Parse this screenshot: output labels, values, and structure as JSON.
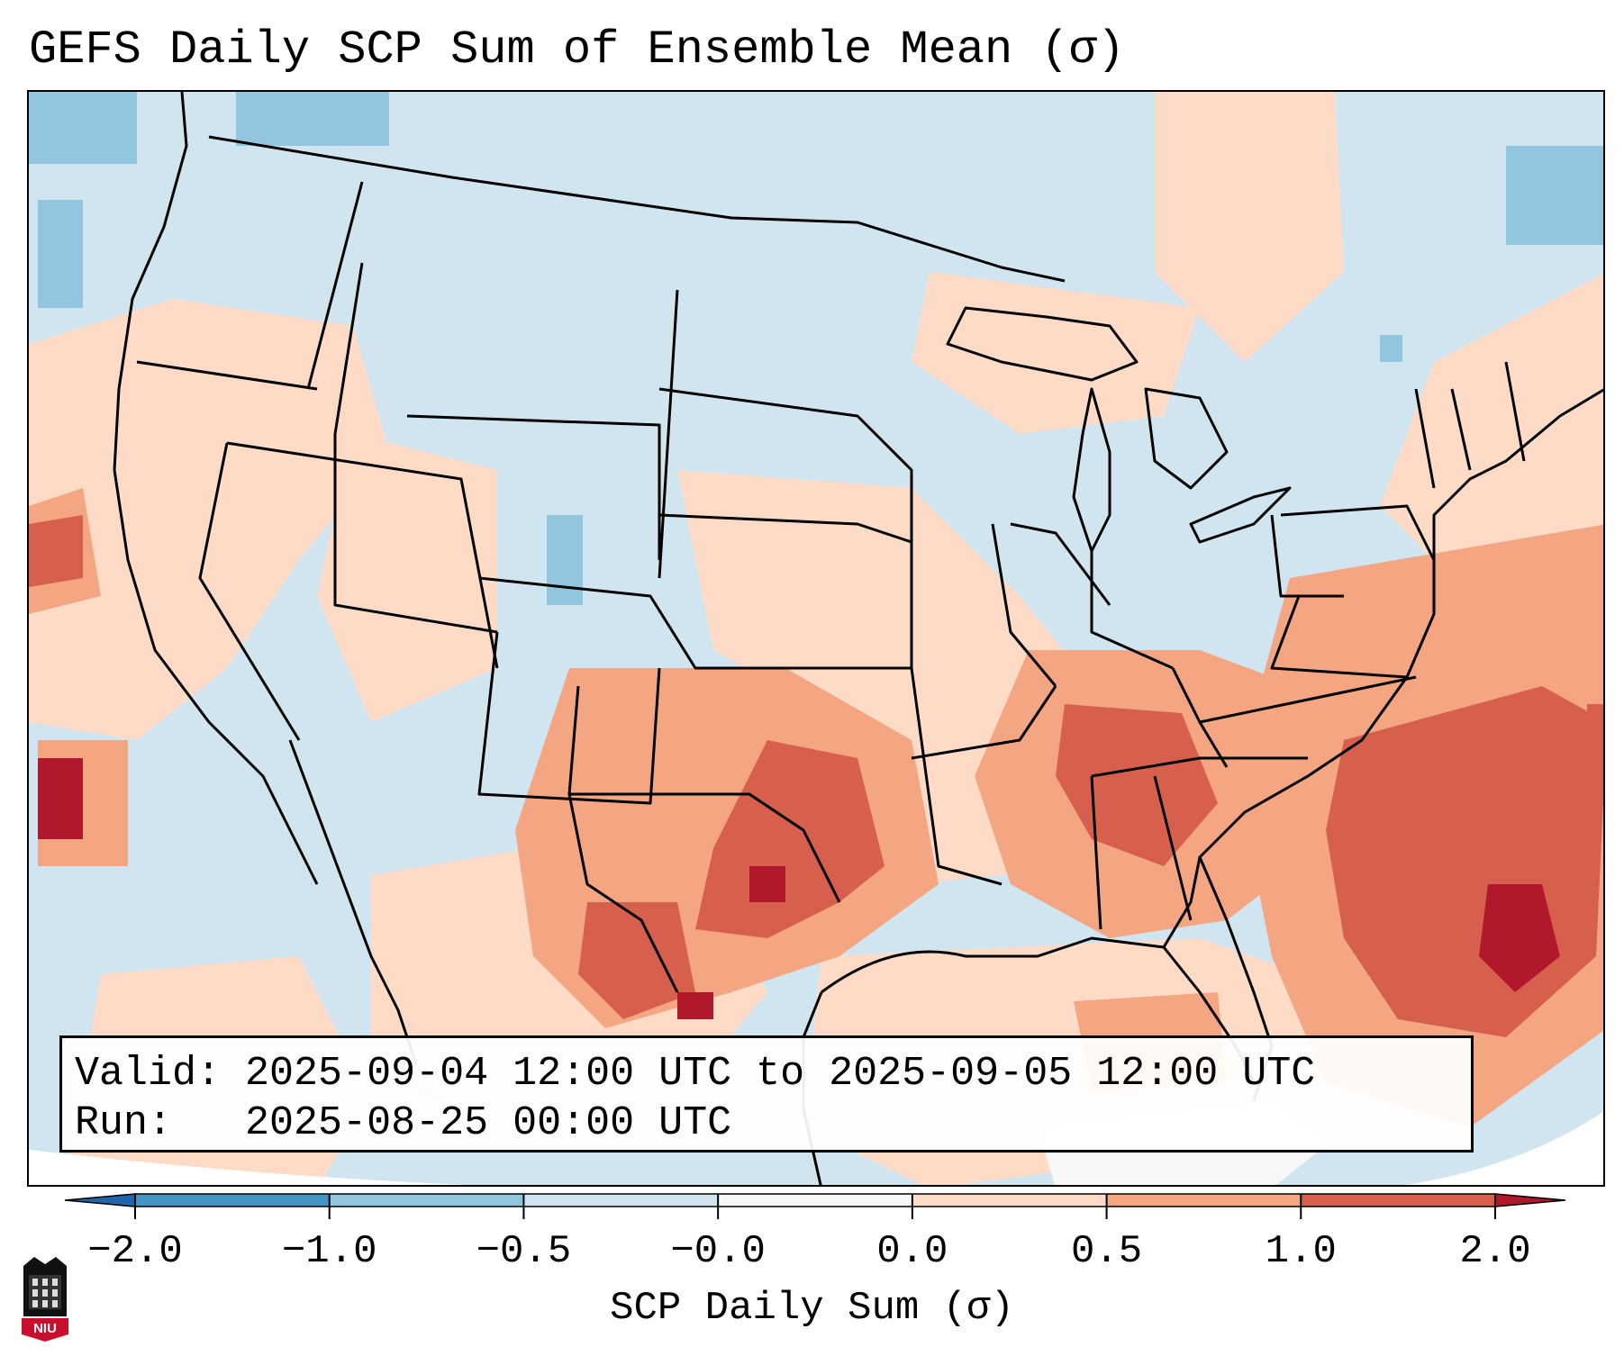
{
  "title": "GEFS Daily SCP Sum of Ensemble Mean (σ)",
  "info": {
    "valid_label": "Valid:",
    "valid_value": "2025-09-04 12:00 UTC to 2025-09-05 12:00 UTC",
    "run_label": "Run:",
    "run_value": "2025-08-25 00:00 UTC"
  },
  "colorbar": {
    "label": "SCP Daily Sum (σ)",
    "ticks": [
      "−2.0",
      "−1.0",
      "−0.5",
      "−0.0",
      "0.0",
      "0.5",
      "1.0",
      "2.0"
    ],
    "bins": [
      {
        "range": "< -2.0",
        "color": "#2166ac"
      },
      {
        "range": "-2.0 to -1.0",
        "color": "#4393c3"
      },
      {
        "range": "-1.0 to -0.5",
        "color": "#92c5de"
      },
      {
        "range": "-0.5 to -0.0",
        "color": "#d1e5f0"
      },
      {
        "range": "-0.0 to 0.0",
        "color": "#f7f7f7"
      },
      {
        "range": "0.0 to 0.5",
        "color": "#fddbc7"
      },
      {
        "range": "0.5 to 1.0",
        "color": "#f4a582"
      },
      {
        "range": "1.0 to 2.0",
        "color": "#d6604d"
      },
      {
        "range": "> 2.0",
        "color": "#b2182b"
      }
    ]
  },
  "logo": {
    "text": "NIU",
    "color": "#c8102e"
  }
}
